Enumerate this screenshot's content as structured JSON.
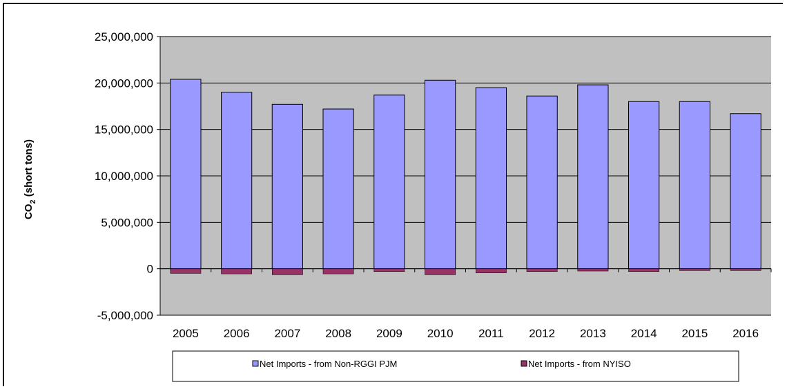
{
  "chart_data": {
    "type": "bar",
    "title": "",
    "xlabel": "",
    "ylabel": "CO2 (short tons)",
    "ylabel_main": "CO",
    "ylabel_sub": "2",
    "ylabel_rest": " (short tons)",
    "ylim": [
      -5000000,
      25000000
    ],
    "yticks": [
      25000000,
      20000000,
      15000000,
      10000000,
      5000000,
      0,
      -5000000
    ],
    "ytick_labels": [
      "25,000,000",
      "20,000,000",
      "15,000,000",
      "10,000,000",
      "5,000,000",
      "0",
      "-5,000,000"
    ],
    "categories": [
      "2005",
      "2006",
      "2007",
      "2008",
      "2009",
      "2010",
      "2011",
      "2012",
      "2013",
      "2014",
      "2015",
      "2016"
    ],
    "series": [
      {
        "name": "Net Imports - from Non-RGGI PJM",
        "color": "#9999ff",
        "values": [
          20400000,
          19000000,
          17700000,
          17200000,
          18700000,
          20300000,
          19500000,
          18600000,
          19800000,
          18000000,
          18000000,
          16700000
        ]
      },
      {
        "name": "Net Imports - from NYISO",
        "color": "#993366",
        "values": [
          -500000,
          -550000,
          -650000,
          -550000,
          -300000,
          -650000,
          -450000,
          -300000,
          -250000,
          -300000,
          -200000,
          -200000
        ]
      }
    ],
    "grid": true,
    "plot_background": "#c0c0c0",
    "legend_position": "bottom"
  }
}
